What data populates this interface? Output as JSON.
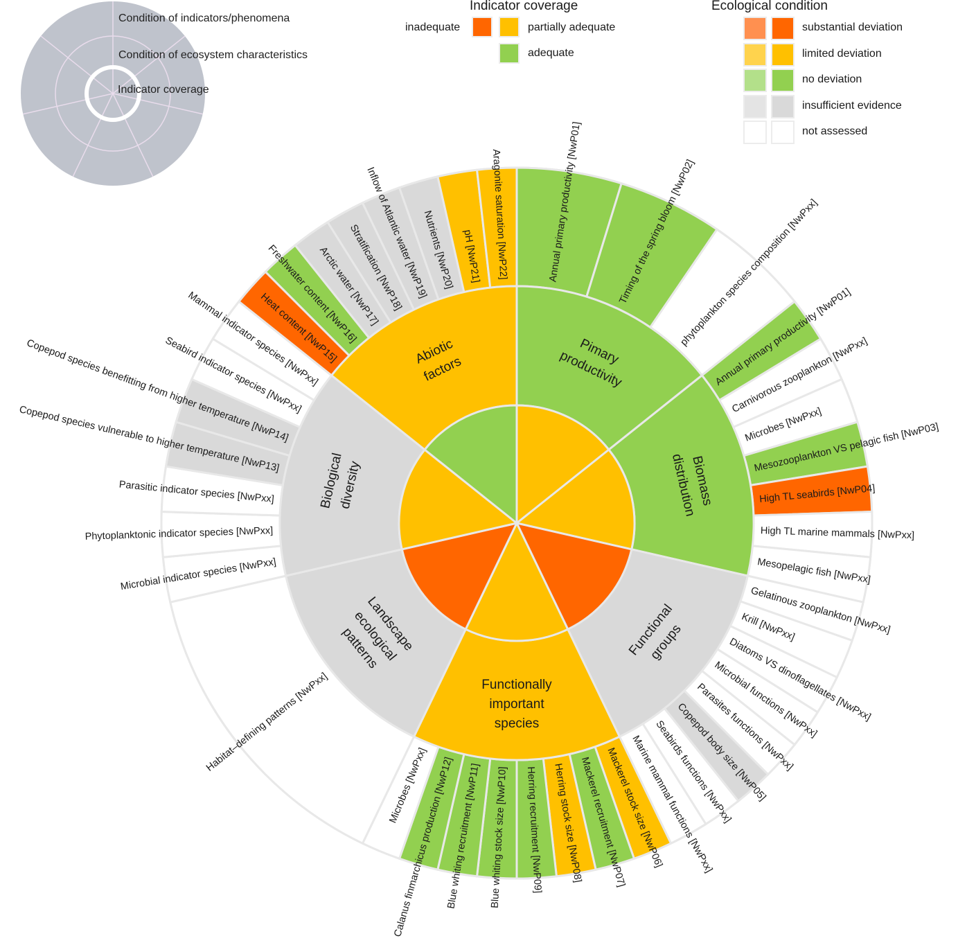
{
  "colors": {
    "inadequate": "#ff6600",
    "partially_adequate": "#ffc000",
    "adequate": "#92d050",
    "substantial_light": "#ff9050",
    "substantial": "#ff6600",
    "limited_light": "#ffd34d",
    "limited": "#ffc000",
    "none_light": "#b3e08a",
    "none": "#92d050",
    "insufficient_light": "#e4e4e4",
    "insufficient": "#d9d9d9",
    "not_assessed": "#ffffff",
    "separator": "#e8e8e8",
    "mini_fill": "#bfc3cc",
    "mini_line": "#e9dcec"
  },
  "mini_legend": {
    "outer_label": "Condition of indicators/phenomena",
    "middle_label": "Condition of ecosystem characteristics",
    "inner_label": "Indicator coverage"
  },
  "coverage_legend": {
    "title": "Indicator coverage",
    "items": [
      {
        "label": "inadequate",
        "color": "#ff6600"
      },
      {
        "label": "partially adequate",
        "color": "#ffc000"
      },
      {
        "label": "adequate",
        "color": "#92d050"
      }
    ]
  },
  "condition_legend": {
    "title": "Ecological condition",
    "items": [
      {
        "label": "substantial deviation",
        "colors": [
          "#ff9050",
          "#ff6600"
        ]
      },
      {
        "label": "limited deviation",
        "colors": [
          "#ffd34d",
          "#ffc000"
        ]
      },
      {
        "label": "no deviation",
        "colors": [
          "#b3e08a",
          "#92d050"
        ]
      },
      {
        "label": "insufficient evidence",
        "colors": [
          "#e4e4e4",
          "#d9d9d9"
        ]
      },
      {
        "label": "not assessed",
        "colors": [
          "#ffffff",
          "#ffffff"
        ]
      }
    ]
  },
  "chart_data": {
    "type": "sunburst",
    "title": "",
    "rings": [
      "Indicator coverage",
      "Condition of ecosystem characteristics",
      "Condition of indicators/phenomena"
    ],
    "sectors": [
      {
        "name": "Pimary productivity",
        "label_lines": [
          "Pimary",
          "productivity"
        ],
        "coverage": "partially adequate",
        "condition": "no deviation",
        "indicators": [
          {
            "label": "Annual primary productivity [NwP01]",
            "condition": "no deviation"
          },
          {
            "label": "Timing of the spring bloom [NwP02]",
            "condition": "no deviation"
          },
          {
            "label": "phytoplankton species composition [NwPxx]",
            "condition": "not assessed"
          }
        ]
      },
      {
        "name": "Biomass distribution",
        "label_lines": [
          "Biomass",
          "distribution"
        ],
        "coverage": "partially adequate",
        "condition": "no deviation",
        "indicators": [
          {
            "label": "Annual primary productivity [NwP01]",
            "condition": "no deviation"
          },
          {
            "label": "Carnivorous zooplankton [NwPxx]",
            "condition": "not assessed"
          },
          {
            "label": "Microbes [NwPxx]",
            "condition": "not assessed"
          },
          {
            "label": "Mesozooplankton VS pelagic fish  [NwP03]",
            "condition": "no deviation"
          },
          {
            "label": "High TL seabirds [NwP04]",
            "condition": "substantial deviation"
          },
          {
            "label": "High TL marine mammals [NwPxx]",
            "condition": "not assessed"
          },
          {
            "label": "Mesopelagic fish [NwPxx]",
            "condition": "not assessed"
          }
        ]
      },
      {
        "name": "Functional groups",
        "label_lines": [
          "Functional",
          "groups"
        ],
        "coverage": "inadequate",
        "condition": "insufficient evidence",
        "indicators": [
          {
            "label": "Gelatinous zooplankton [NwPxx]",
            "condition": "not assessed"
          },
          {
            "label": "Krill [NwPxx]",
            "condition": "not assessed"
          },
          {
            "label": "Diatoms VS dinoflagellates [NwPxx]",
            "condition": "not assessed"
          },
          {
            "label": "Microbial functions [NwPxx]",
            "condition": "not assessed"
          },
          {
            "label": "Parasites functions [NwPxx]",
            "condition": "not assessed"
          },
          {
            "label": "Copepod body size  [NwP05]",
            "condition": "insufficient evidence"
          },
          {
            "label": "Seabirds functions [NwPxx]",
            "condition": "not assessed"
          },
          {
            "label": "Marine mammal functions [NwPxx]",
            "condition": "not assessed"
          }
        ]
      },
      {
        "name": "Functionally important species",
        "label_lines": [
          "Functionally",
          "important",
          "species"
        ],
        "coverage": "partially adequate",
        "condition": "limited deviation",
        "indicators": [
          {
            "label": "Mackerel stock size [NwP06]",
            "condition": "limited deviation"
          },
          {
            "label": "Mackerel recruitment [NwP07]",
            "condition": "no deviation"
          },
          {
            "label": "Herring stock size [NwP08]",
            "condition": "limited deviation"
          },
          {
            "label": "Herring recruitment [NwP09]",
            "condition": "no deviation"
          },
          {
            "label": "Blue whiting stock size [NwP10]",
            "condition": "no deviation"
          },
          {
            "label": "Blue whiting recruitment [NwP11]",
            "condition": "no deviation"
          },
          {
            "label": "Calanus finmarchicus production [NwP12]",
            "condition": "no deviation"
          },
          {
            "label": "Microbes [NwPxx]",
            "condition": "not assessed"
          }
        ]
      },
      {
        "name": "Landscape ecological patterns",
        "label_lines": [
          "Landscape",
          "ecological",
          "patterns"
        ],
        "coverage": "inadequate",
        "condition": "insufficient evidence",
        "indicators": [
          {
            "label": "Habitat–defining patterns [NwPxx]",
            "condition": "not assessed"
          }
        ]
      },
      {
        "name": "Biological diversity",
        "label_lines": [
          "Biological",
          "diversity"
        ],
        "coverage": "partially adequate",
        "condition": "insufficient evidence",
        "indicators": [
          {
            "label": "Microbial indicator species [NwPxx]",
            "condition": "not assessed"
          },
          {
            "label": "Phytoplanktonic indicator species [NwPxx]",
            "condition": "not assessed"
          },
          {
            "label": "Parasitic indicator species [NwPxx]",
            "condition": "not assessed"
          },
          {
            "label": "Copepod species vulnerable to higher temperature [NwP13]",
            "condition": "insufficient evidence"
          },
          {
            "label": "Copepod species benefitting from higher temperature [NwP14]",
            "condition": "insufficient evidence"
          },
          {
            "label": "Seabird indicator species [NwPxx]",
            "condition": "not assessed"
          },
          {
            "label": "Mammal indicator species [NwPxx]",
            "condition": "not assessed"
          }
        ]
      },
      {
        "name": "Abiotic factors",
        "label_lines": [
          "Abiotic",
          "factors"
        ],
        "coverage": "adequate",
        "condition": "limited deviation",
        "indicators": [
          {
            "label": "Heat content [NwP15]",
            "condition": "substantial deviation"
          },
          {
            "label": "Freshwater content [NwP16]",
            "condition": "no deviation"
          },
          {
            "label": "Arctic water [NwP17]",
            "condition": "insufficient evidence"
          },
          {
            "label": "Stratification [NwP18]",
            "condition": "insufficient evidence"
          },
          {
            "label": "Inflow of Atlantic water [NwP19]",
            "condition": "insufficient evidence"
          },
          {
            "label": "Nutrients [NwP20]",
            "condition": "insufficient evidence"
          },
          {
            "label": "pH [NwP21]",
            "condition": "limited deviation"
          },
          {
            "label": "Aragonite saturation [NwP22]",
            "condition": "limited deviation"
          }
        ]
      }
    ]
  }
}
